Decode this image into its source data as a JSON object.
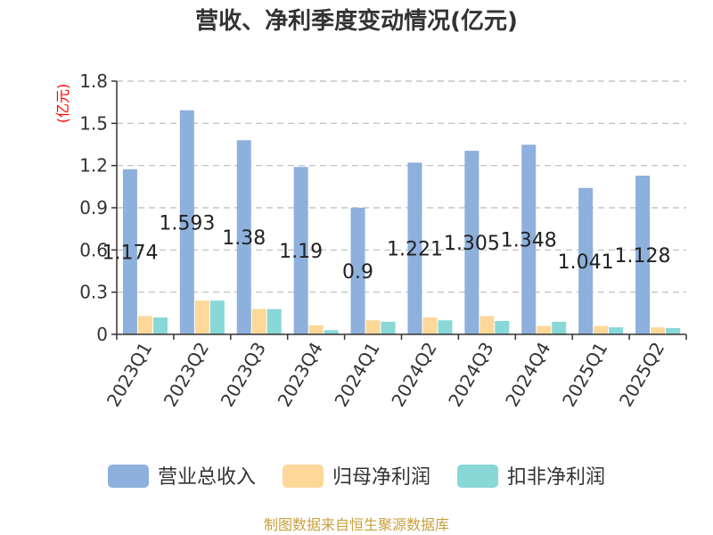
{
  "chart_data": {
    "type": "bar",
    "title": "营收、净利季度变动情况(亿元)",
    "ylabel": "(亿元)",
    "ylim": [
      0,
      1.8
    ],
    "yticks": [
      "0",
      "0.3",
      "0.6",
      "0.9",
      "1.2",
      "1.5",
      "1.8"
    ],
    "grid": true,
    "legend_position": "bottom",
    "categories": [
      "2023Q1",
      "2023Q2",
      "2023Q3",
      "2023Q4",
      "2024Q1",
      "2024Q2",
      "2024Q3",
      "2024Q4",
      "2025Q1",
      "2025Q2"
    ],
    "series": [
      {
        "name": "营业总收入",
        "color": "#8eb0dc",
        "values": [
          1.174,
          1.593,
          1.38,
          1.19,
          0.9,
          1.221,
          1.305,
          1.348,
          1.041,
          1.128
        ]
      },
      {
        "name": "归母净利润",
        "color": "#fdd899",
        "values": [
          0.13,
          0.24,
          0.18,
          0.065,
          0.1,
          0.12,
          0.13,
          0.06,
          0.06,
          0.05
        ]
      },
      {
        "name": "扣非净利润",
        "color": "#88d8d8",
        "values": [
          0.12,
          0.24,
          0.18,
          0.03,
          0.09,
          0.1,
          0.095,
          0.09,
          0.05,
          0.045
        ]
      }
    ],
    "data_labels": [
      "1.174",
      "1.593",
      "1.38",
      "1.19",
      "0.9",
      "1.221",
      "1.305",
      "1.348",
      "1.041",
      "1.128"
    ]
  },
  "source": "制图数据来自恒生聚源数据库"
}
